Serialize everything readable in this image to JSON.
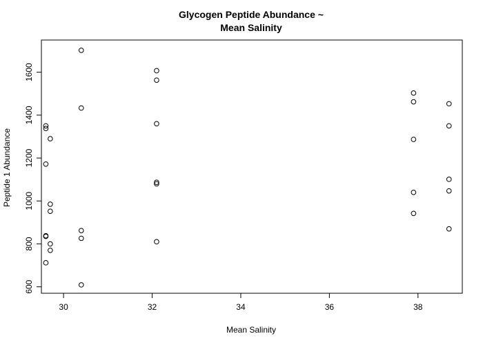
{
  "chart_data": {
    "type": "scatter",
    "title_lines": [
      "Glycogen Peptide Abundance ~",
      "Mean Salinity"
    ],
    "xlabel": "Mean Salinity",
    "ylabel": "Peptide 1 Abundance",
    "xlim": [
      29.5,
      39.0
    ],
    "ylim": [
      570,
      1750
    ],
    "xticks": [
      30,
      32,
      34,
      36,
      38
    ],
    "yticks": [
      600,
      800,
      1000,
      1200,
      1400,
      1600
    ],
    "grid": false,
    "points": [
      {
        "x": 29.6,
        "y": 1350
      },
      {
        "x": 29.6,
        "y": 1338
      },
      {
        "x": 29.6,
        "y": 1172
      },
      {
        "x": 29.6,
        "y": 838
      },
      {
        "x": 29.6,
        "y": 835
      },
      {
        "x": 29.6,
        "y": 712
      },
      {
        "x": 29.7,
        "y": 1290
      },
      {
        "x": 29.7,
        "y": 985
      },
      {
        "x": 29.7,
        "y": 952
      },
      {
        "x": 29.7,
        "y": 800
      },
      {
        "x": 29.7,
        "y": 770
      },
      {
        "x": 30.4,
        "y": 1702
      },
      {
        "x": 30.4,
        "y": 1433
      },
      {
        "x": 30.4,
        "y": 862
      },
      {
        "x": 30.4,
        "y": 826
      },
      {
        "x": 30.4,
        "y": 609
      },
      {
        "x": 32.1,
        "y": 1607
      },
      {
        "x": 32.1,
        "y": 1563
      },
      {
        "x": 32.1,
        "y": 1360
      },
      {
        "x": 32.1,
        "y": 1087
      },
      {
        "x": 32.1,
        "y": 1080
      },
      {
        "x": 32.1,
        "y": 810
      },
      {
        "x": 37.9,
        "y": 1503
      },
      {
        "x": 37.9,
        "y": 1462
      },
      {
        "x": 37.9,
        "y": 1287
      },
      {
        "x": 37.9,
        "y": 1040
      },
      {
        "x": 37.9,
        "y": 942
      },
      {
        "x": 38.7,
        "y": 1453
      },
      {
        "x": 38.7,
        "y": 1350
      },
      {
        "x": 38.7,
        "y": 1101
      },
      {
        "x": 38.7,
        "y": 1047
      },
      {
        "x": 38.7,
        "y": 870
      }
    ]
  }
}
